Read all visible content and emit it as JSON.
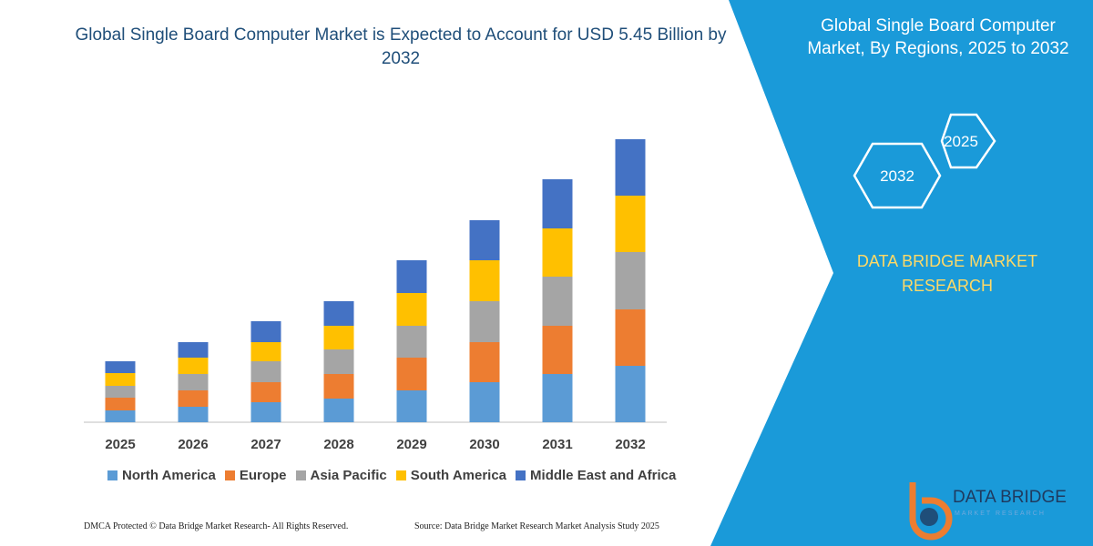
{
  "chart_data": {
    "type": "stacked-bar",
    "title": "Global Single Board Computer Market is Expected to Account for USD 5.45 Billion by 2032",
    "categories": [
      "2025",
      "2026",
      "2027",
      "2028",
      "2029",
      "2030",
      "2031",
      "2032"
    ],
    "series": [
      {
        "name": "North America",
        "color": "#5b9bd5",
        "values": [
          13,
          17,
          22,
          26,
          35,
          44,
          53,
          62
        ]
      },
      {
        "name": "Europe",
        "color": "#ed7d31",
        "values": [
          14,
          18,
          22,
          27,
          36,
          44,
          53,
          62
        ]
      },
      {
        "name": "Asia Pacific",
        "color": "#a5a5a5",
        "values": [
          13,
          18,
          23,
          27,
          35,
          45,
          54,
          63
        ]
      },
      {
        "name": "South America",
        "color": "#ffc000",
        "values": [
          14,
          18,
          21,
          26,
          36,
          45,
          53,
          62
        ]
      },
      {
        "name": "Middle East and Africa",
        "color": "#4472c4",
        "values": [
          13,
          17,
          23,
          27,
          36,
          44,
          54,
          62
        ]
      }
    ],
    "ylim": [
      0,
      311
    ]
  },
  "panel": {
    "title": "Global Single Board Computer Market, By Regions, 2025 to 2032",
    "hex_top": "2025",
    "hex_bottom": "2032",
    "brand_lines": [
      "DATA BRIDGE MARKET",
      "RESEARCH"
    ]
  },
  "logo": {
    "name": "DATA BRIDGE",
    "tagline": "MARKET RESEARCH"
  },
  "footer": {
    "left": "DMCA Protected © Data Bridge Market Research-  All Rights Reserved.",
    "right": "Source: Data Bridge Market Research  Market Analysis Study 2025"
  }
}
